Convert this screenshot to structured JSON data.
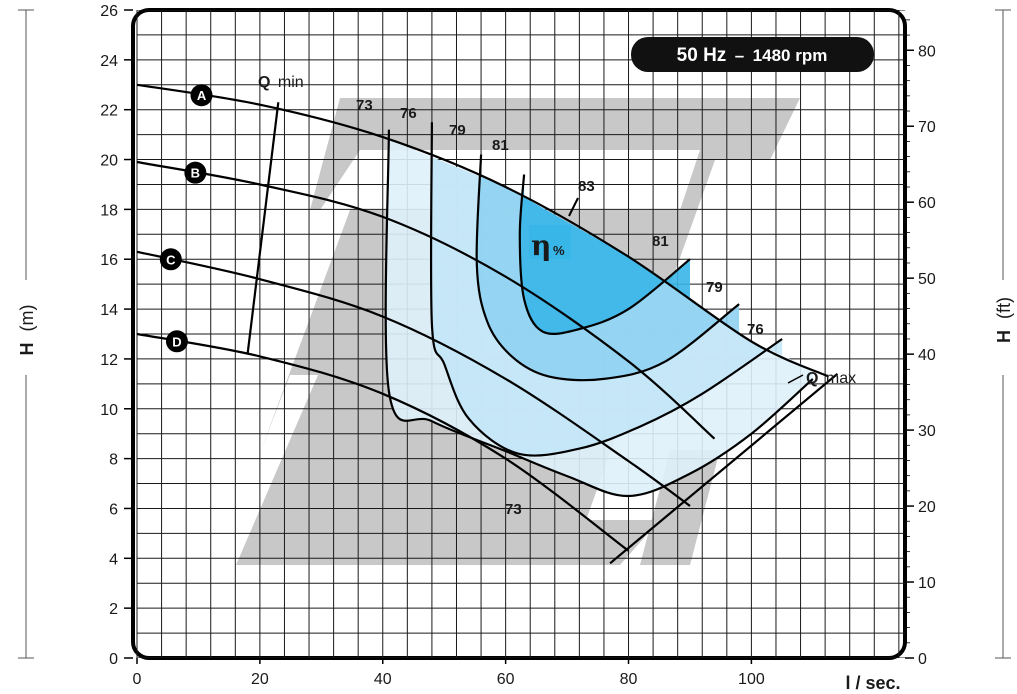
{
  "chart_data": {
    "type": "line",
    "badge": {
      "freq": "50 Hz",
      "dash": "–",
      "speed": "1480 rpm"
    },
    "xlabel": "l / sec.",
    "ylabel_left": {
      "main": "H",
      "unit": "(m)"
    },
    "ylabel_right": {
      "main": "H",
      "unit": "(ft)"
    },
    "xlim": [
      0,
      125
    ],
    "ylim": [
      0,
      26
    ],
    "y2lim": [
      0,
      85.3
    ],
    "grid": true,
    "x_ticks": [
      0,
      20,
      40,
      60,
      80,
      100
    ],
    "y_ticks": [
      0,
      2,
      4,
      6,
      8,
      10,
      12,
      14,
      16,
      18,
      20,
      22,
      24,
      26
    ],
    "y2_ticks": [
      0,
      10,
      20,
      30,
      40,
      50,
      60,
      70,
      80
    ],
    "series": [
      {
        "name": "A",
        "x": [
          0,
          20,
          40,
          60,
          80,
          100,
          112.5
        ],
        "y": [
          23,
          22.2,
          20.9,
          18.9,
          16.1,
          12.7,
          11.3
        ]
      },
      {
        "name": "B",
        "x": [
          0,
          20,
          40,
          60,
          80,
          94
        ],
        "y": [
          19.9,
          19.0,
          17.7,
          15.3,
          11.9,
          8.8
        ]
      },
      {
        "name": "C",
        "x": [
          0,
          20,
          40,
          60,
          80,
          90
        ],
        "y": [
          16.3,
          15.2,
          13.7,
          11.2,
          7.9,
          6.1
        ]
      },
      {
        "name": "D",
        "x": [
          0,
          20,
          40,
          60,
          80
        ],
        "y": [
          13,
          12.1,
          10.6,
          8.0,
          4.3
        ]
      }
    ],
    "efficiency_contours": [
      {
        "label": "73",
        "x": [
          41,
          41,
          48,
          60,
          70,
          80,
          90,
          100,
          110
        ],
        "y": [
          21.2,
          10.7,
          9.5,
          8.3,
          7.3,
          6.5,
          7.4,
          9.0,
          11.2
        ]
      },
      {
        "label": "76",
        "x": [
          48,
          48,
          50,
          54,
          62,
          72,
          82,
          92,
          105
        ],
        "y": [
          21.5,
          13.4,
          11.8,
          9.6,
          8.2,
          8.4,
          9.3,
          10.6,
          12.8
        ]
      },
      {
        "label": "79",
        "x": [
          56,
          55.3,
          57,
          61,
          67,
          76,
          86,
          98
        ],
        "y": [
          20.2,
          15.8,
          13.5,
          12.1,
          11.3,
          11.2,
          11.9,
          14.2
        ]
      },
      {
        "label": "81",
        "x": [
          63,
          62.3,
          63,
          66,
          72,
          80,
          90
        ],
        "y": [
          19.4,
          17.0,
          14.4,
          13.1,
          13.2,
          14.0,
          16.0
        ]
      }
    ],
    "efficiency_label": {
      "symbol": "η",
      "unit": "%"
    },
    "efficiency_values": {
      "c73_top": "73",
      "c76_top": "76",
      "c79_top": "79",
      "c81_top": "81",
      "c83": "83",
      "c81_right": "81",
      "c79_right": "79",
      "c76_right": "76",
      "c73_bottom": "73"
    },
    "q_min": {
      "bold": "Q",
      "rest": "min",
      "x": [
        18,
        23
      ],
      "y": [
        12.2,
        22.3
      ]
    },
    "q_max": {
      "bold": "Q",
      "rest": "max",
      "x": [
        77,
        114
      ],
      "y": [
        3.8,
        11.4
      ]
    }
  }
}
